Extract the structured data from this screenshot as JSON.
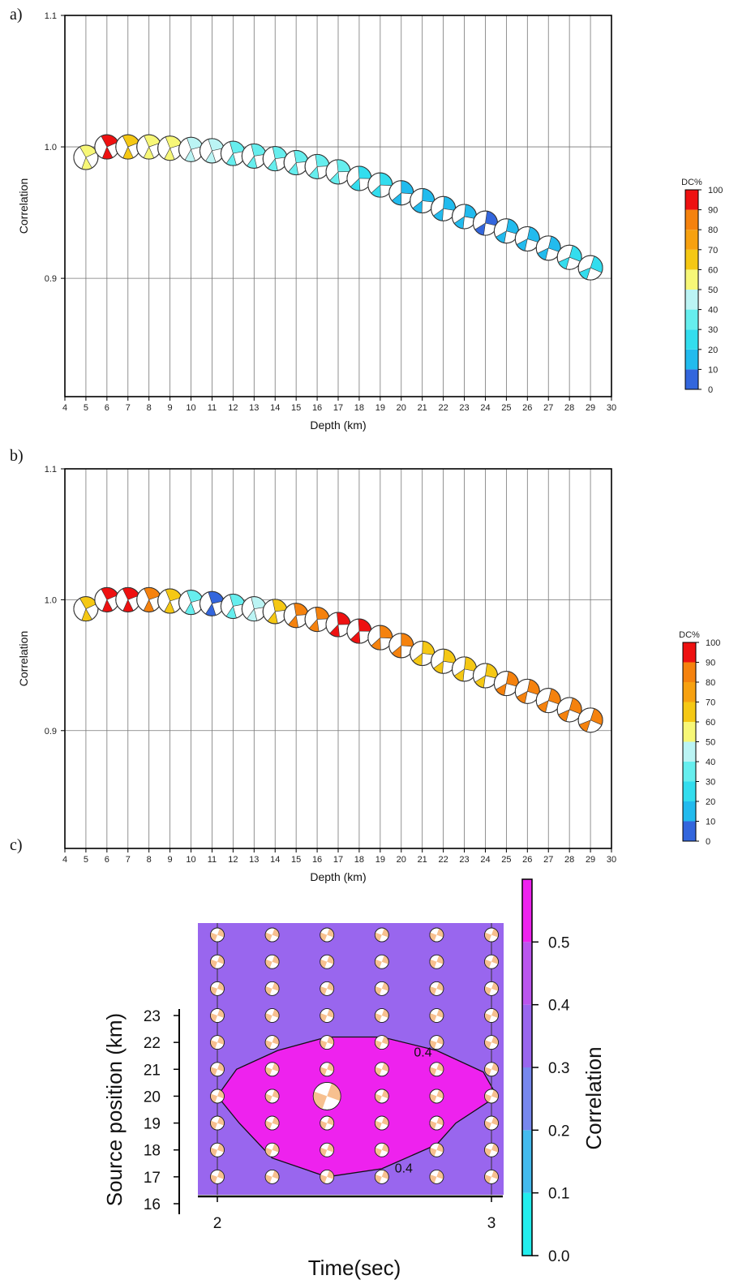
{
  "panels": {
    "a": {
      "label": "a)"
    },
    "b": {
      "label": "b)"
    },
    "c": {
      "label": "c)"
    }
  },
  "chart_data": [
    {
      "id": "a",
      "type": "scatter",
      "marker": "focal-mechanism beachball",
      "xlabel": "Depth (km)",
      "ylabel": "Correlation",
      "xlim": [
        4,
        30
      ],
      "ylim": [
        0.81,
        1.1
      ],
      "xticks": [
        "4",
        "5",
        "6",
        "7",
        "8",
        "9",
        "10",
        "11",
        "12",
        "13",
        "14",
        "15",
        "16",
        "17",
        "18",
        "19",
        "20",
        "21",
        "22",
        "23",
        "24",
        "25",
        "26",
        "27",
        "28",
        "29",
        "30"
      ],
      "yticks": [
        "0.9",
        "1.0",
        "1.1"
      ],
      "grid": true,
      "points": [
        {
          "x": 5,
          "y": 0.992,
          "dc": 55
        },
        {
          "x": 6,
          "y": 1.0,
          "dc": 95
        },
        {
          "x": 7,
          "y": 1.0,
          "dc": 65
        },
        {
          "x": 8,
          "y": 1.0,
          "dc": 58
        },
        {
          "x": 9,
          "y": 0.999,
          "dc": 55
        },
        {
          "x": 10,
          "y": 0.998,
          "dc": 42
        },
        {
          "x": 11,
          "y": 0.997,
          "dc": 40
        },
        {
          "x": 12,
          "y": 0.995,
          "dc": 38
        },
        {
          "x": 13,
          "y": 0.993,
          "dc": 36
        },
        {
          "x": 14,
          "y": 0.991,
          "dc": 33
        },
        {
          "x": 15,
          "y": 0.988,
          "dc": 32
        },
        {
          "x": 16,
          "y": 0.985,
          "dc": 30
        },
        {
          "x": 17,
          "y": 0.981,
          "dc": 30
        },
        {
          "x": 18,
          "y": 0.976,
          "dc": 28
        },
        {
          "x": 19,
          "y": 0.971,
          "dc": 25
        },
        {
          "x": 20,
          "y": 0.965,
          "dc": 18
        },
        {
          "x": 21,
          "y": 0.959,
          "dc": 18
        },
        {
          "x": 22,
          "y": 0.953,
          "dc": 18
        },
        {
          "x": 23,
          "y": 0.947,
          "dc": 15
        },
        {
          "x": 24,
          "y": 0.942,
          "dc": 8
        },
        {
          "x": 25,
          "y": 0.936,
          "dc": 18
        },
        {
          "x": 26,
          "y": 0.93,
          "dc": 18
        },
        {
          "x": 27,
          "y": 0.923,
          "dc": 18
        },
        {
          "x": 28,
          "y": 0.916,
          "dc": 20
        },
        {
          "x": 29,
          "y": 0.908,
          "dc": 22
        }
      ],
      "colorbar": {
        "title": "DC%",
        "ticks": [
          "0",
          "10",
          "20",
          "30",
          "40",
          "50",
          "60",
          "70",
          "80",
          "90",
          "100"
        ],
        "colors": [
          "#3366dd",
          "#22bbee",
          "#33ddee",
          "#66eeee",
          "#bbf4f4",
          "#f7f777",
          "#f5c814",
          "#f7a110",
          "#f5820e",
          "#ee1111"
        ]
      }
    },
    {
      "id": "b",
      "type": "scatter",
      "marker": "focal-mechanism beachball",
      "xlabel": "Depth (km)",
      "ylabel": "Correlation",
      "xlim": [
        4,
        30
      ],
      "ylim": [
        0.81,
        1.1
      ],
      "xticks": [
        "4",
        "5",
        "6",
        "7",
        "8",
        "9",
        "10",
        "11",
        "12",
        "13",
        "14",
        "15",
        "16",
        "17",
        "18",
        "19",
        "20",
        "21",
        "22",
        "23",
        "24",
        "25",
        "26",
        "27",
        "28",
        "29",
        "30"
      ],
      "yticks": [
        "0.9",
        "1.0",
        "1.1"
      ],
      "grid": true,
      "points": [
        {
          "x": 5,
          "y": 0.993,
          "dc": 65
        },
        {
          "x": 6,
          "y": 1.0,
          "dc": 95
        },
        {
          "x": 7,
          "y": 1.0,
          "dc": 95
        },
        {
          "x": 8,
          "y": 1.0,
          "dc": 82
        },
        {
          "x": 9,
          "y": 0.999,
          "dc": 65
        },
        {
          "x": 10,
          "y": 0.998,
          "dc": 35
        },
        {
          "x": 11,
          "y": 0.997,
          "dc": 8
        },
        {
          "x": 12,
          "y": 0.995,
          "dc": 30
        },
        {
          "x": 13,
          "y": 0.993,
          "dc": 42
        },
        {
          "x": 14,
          "y": 0.991,
          "dc": 65
        },
        {
          "x": 15,
          "y": 0.988,
          "dc": 82
        },
        {
          "x": 16,
          "y": 0.985,
          "dc": 85
        },
        {
          "x": 17,
          "y": 0.981,
          "dc": 95
        },
        {
          "x": 18,
          "y": 0.976,
          "dc": 95
        },
        {
          "x": 19,
          "y": 0.971,
          "dc": 82
        },
        {
          "x": 20,
          "y": 0.965,
          "dc": 82
        },
        {
          "x": 21,
          "y": 0.959,
          "dc": 65
        },
        {
          "x": 22,
          "y": 0.953,
          "dc": 65
        },
        {
          "x": 23,
          "y": 0.947,
          "dc": 65
        },
        {
          "x": 24,
          "y": 0.942,
          "dc": 65
        },
        {
          "x": 25,
          "y": 0.936,
          "dc": 82
        },
        {
          "x": 26,
          "y": 0.93,
          "dc": 82
        },
        {
          "x": 27,
          "y": 0.923,
          "dc": 82
        },
        {
          "x": 28,
          "y": 0.916,
          "dc": 82
        },
        {
          "x": 29,
          "y": 0.908,
          "dc": 82
        }
      ],
      "colorbar": {
        "title": "DC%",
        "ticks": [
          "0",
          "10",
          "20",
          "30",
          "40",
          "50",
          "60",
          "70",
          "80",
          "90",
          "100"
        ],
        "colors": [
          "#3366dd",
          "#22bbee",
          "#33ddee",
          "#66eeee",
          "#bbf4f4",
          "#f7f777",
          "#f5c814",
          "#f7a110",
          "#f5820e",
          "#ee1111"
        ]
      }
    },
    {
      "id": "c",
      "type": "heatmap",
      "marker": "focal-mechanism beachball grid",
      "xlabel": "Time(sec)",
      "ylabel": "Source position (km)",
      "xlim": [
        1.92,
        3.04
      ],
      "ylim": [
        15.9,
        26.9
      ],
      "xticks": [
        "2",
        "3"
      ],
      "yticks": [
        "16",
        "17",
        "18",
        "19",
        "20",
        "21",
        "22",
        "23"
      ],
      "grid_x": [
        2.0,
        2.2,
        2.4,
        2.6,
        2.8,
        3.0
      ],
      "grid_y": [
        17,
        18,
        19,
        20,
        21,
        22,
        23,
        24,
        25,
        26
      ],
      "best": {
        "x": 2.4,
        "y": 20
      },
      "contour_level": 0.4,
      "contour_labels": [
        "0.4",
        "0.4"
      ],
      "contour": [
        [
          2.0,
          20.0
        ],
        [
          2.07,
          21.0
        ],
        [
          2.22,
          21.7
        ],
        [
          2.4,
          22.2
        ],
        [
          2.6,
          22.2
        ],
        [
          2.8,
          21.7
        ],
        [
          2.97,
          20.9
        ],
        [
          3.02,
          20.0
        ],
        [
          2.87,
          19.0
        ],
        [
          2.8,
          18.2
        ],
        [
          2.6,
          17.3
        ],
        [
          2.4,
          17.0
        ],
        [
          2.2,
          17.7
        ],
        [
          2.08,
          19.0
        ],
        [
          2.0,
          20.0
        ]
      ],
      "background_value": 0.33,
      "inside_value": 0.45,
      "colorbar": {
        "title": "Correlation",
        "ticks": [
          "0.0",
          "0.1",
          "0.2",
          "0.3",
          "0.4",
          "0.5"
        ],
        "range": [
          0.0,
          0.5
        ],
        "colors": [
          "#22eeee",
          "#44bbee",
          "#7788ee",
          "#9966ee",
          "#bb55ee",
          "#ee22ee"
        ]
      }
    }
  ]
}
